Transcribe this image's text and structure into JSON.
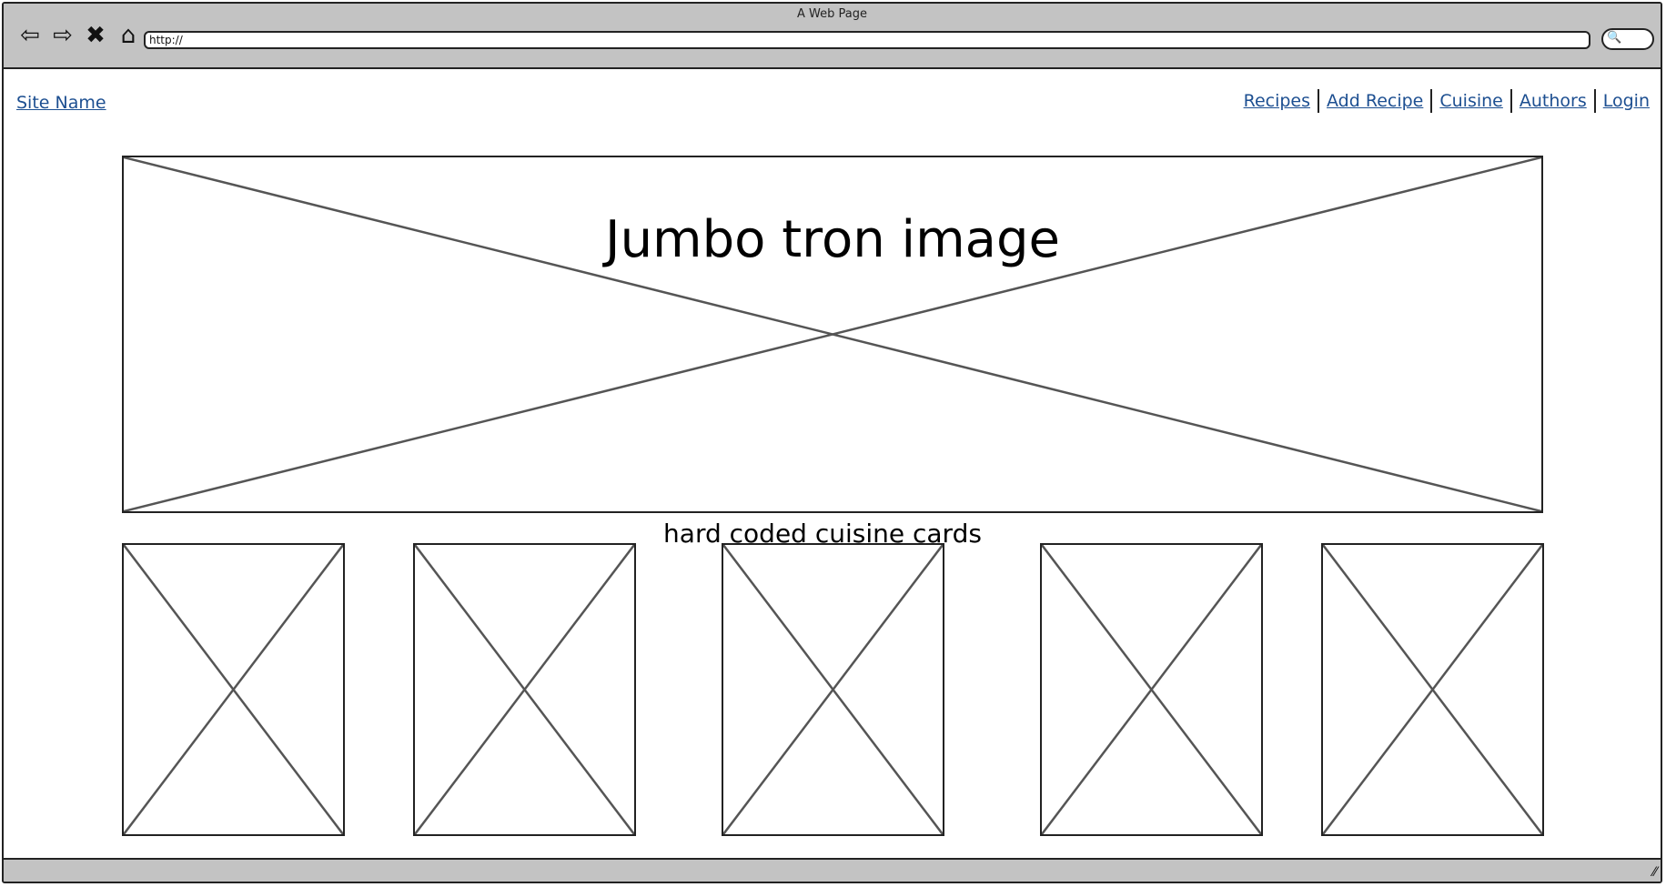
{
  "window": {
    "title": "A Web Page"
  },
  "browser": {
    "url": "http://",
    "icons": [
      "back-arrow-icon",
      "forward-arrow-icon",
      "close-x-icon",
      "home-icon"
    ]
  },
  "site": {
    "name": "Site Name",
    "menu": [
      "Recipes",
      "Add Recipe",
      "Cuisine",
      "Authors",
      "Login"
    ]
  },
  "hero": {
    "label": "Jumbo tron image"
  },
  "cards": {
    "title": "hard coded cuisine cards",
    "count": 5
  }
}
